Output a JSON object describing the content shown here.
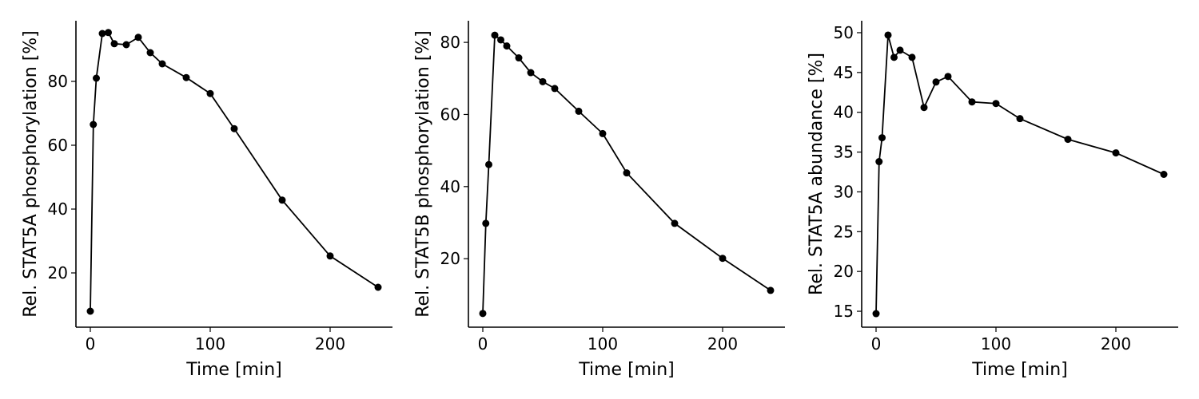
{
  "chart_data": [
    {
      "type": "line",
      "xlabel": "Time [min]",
      "ylabel": "Rel. STAT5A phosphorylation [%]",
      "xlim": [
        -12,
        252
      ],
      "ylim": [
        3,
        99
      ],
      "xticks": [
        0,
        100,
        200
      ],
      "yticks": [
        20,
        40,
        60,
        80
      ],
      "grid": false,
      "series": [
        {
          "x": [
            0,
            2.5,
            5,
            10,
            15,
            20,
            30,
            40,
            50,
            60,
            80,
            100,
            120,
            160,
            200,
            240
          ],
          "y": [
            8.0,
            66.5,
            81.0,
            95.0,
            95.3,
            91.8,
            91.5,
            93.8,
            89.0,
            85.5,
            81.2,
            76.2,
            65.2,
            42.8,
            25.3,
            15.5
          ]
        }
      ]
    },
    {
      "type": "line",
      "xlabel": "Time [min]",
      "ylabel": "Rel. STAT5B phosphorylation [%]",
      "xlim": [
        -12,
        252
      ],
      "ylim": [
        1,
        86
      ],
      "xticks": [
        0,
        100,
        200
      ],
      "yticks": [
        20,
        40,
        60,
        80
      ],
      "grid": false,
      "series": [
        {
          "x": [
            0,
            2.5,
            5,
            10,
            15,
            20,
            30,
            40,
            50,
            60,
            80,
            100,
            120,
            160,
            200,
            240
          ],
          "y": [
            4.8,
            29.8,
            46.1,
            82.0,
            80.7,
            79.0,
            75.7,
            71.6,
            69.1,
            67.2,
            60.9,
            54.7,
            43.8,
            29.8,
            20.1,
            11.2
          ]
        }
      ]
    },
    {
      "type": "line",
      "xlabel": "Time [min]",
      "ylabel": "Rel. STAT5A abundance [%]",
      "xlim": [
        -12,
        252
      ],
      "ylim": [
        13,
        51.5
      ],
      "xticks": [
        0,
        100,
        200
      ],
      "yticks": [
        15,
        20,
        25,
        30,
        35,
        40,
        45,
        50
      ],
      "grid": false,
      "series": [
        {
          "x": [
            0,
            2.5,
            5,
            10,
            15,
            20,
            30,
            40,
            50,
            60,
            80,
            100,
            120,
            160,
            200,
            240
          ],
          "y": [
            14.7,
            33.8,
            36.8,
            49.7,
            46.9,
            47.8,
            46.9,
            40.6,
            43.8,
            44.5,
            41.3,
            41.1,
            39.2,
            36.6,
            34.9,
            32.2
          ]
        }
      ]
    }
  ]
}
